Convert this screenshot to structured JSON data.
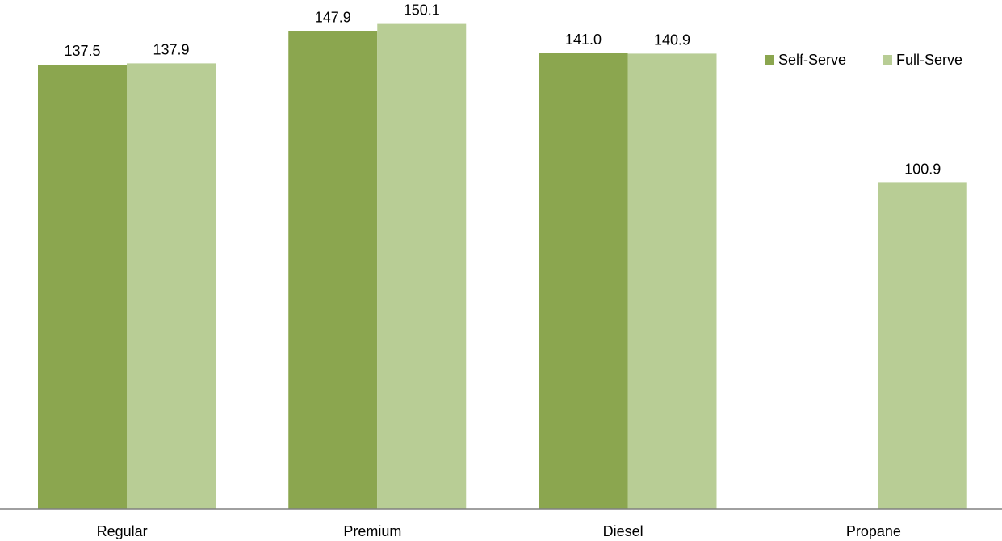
{
  "chart_data": {
    "type": "bar",
    "categories": [
      "Regular",
      "Premium",
      "Diesel",
      "Propane"
    ],
    "series": [
      {
        "name": "Self-Serve",
        "color": "#8ba64f",
        "values": [
          137.5,
          147.9,
          141.0,
          null
        ],
        "labels": [
          "137.5",
          "147.9",
          "141.0",
          null
        ]
      },
      {
        "name": "Full-Serve",
        "color": "#b8cd95",
        "values": [
          137.9,
          150.1,
          140.9,
          100.9
        ],
        "labels": [
          "137.9",
          "150.1",
          "140.9",
          "100.9"
        ]
      }
    ],
    "ylim": [
      0,
      155
    ],
    "grid": false,
    "legend_position": "top-right",
    "axis_color": "#808080"
  }
}
